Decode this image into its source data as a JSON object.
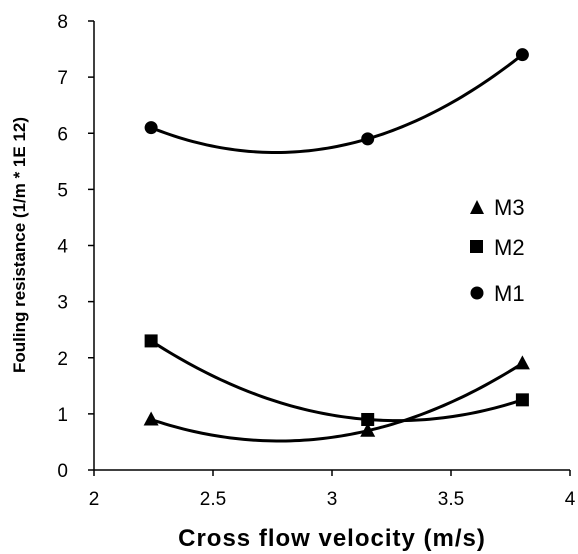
{
  "chart_data": {
    "type": "scatter",
    "xlabel": "Cross flow velocity (m/s)",
    "ylabel": "Fouling resistance (1/m * 1E 12)",
    "xlim": [
      2,
      4
    ],
    "ylim": [
      0,
      8
    ],
    "x_ticks": [
      "2",
      "2.5",
      "3",
      "3.5",
      "4"
    ],
    "y_ticks": [
      "0",
      "1",
      "2",
      "3",
      "4",
      "5",
      "6",
      "7",
      "8"
    ],
    "grid": false,
    "legend_position": "right",
    "trendline": "polynomial-2",
    "series": [
      {
        "name": "M3",
        "marker": "triangle",
        "color": "#000000",
        "points": [
          {
            "x": 2.24,
            "y": 0.9
          },
          {
            "x": 3.15,
            "y": 0.7
          },
          {
            "x": 3.8,
            "y": 1.9
          }
        ]
      },
      {
        "name": "M2",
        "marker": "square",
        "color": "#000000",
        "points": [
          {
            "x": 2.24,
            "y": 2.3
          },
          {
            "x": 3.15,
            "y": 0.9
          },
          {
            "x": 3.8,
            "y": 1.25
          }
        ]
      },
      {
        "name": "M1",
        "marker": "circle",
        "color": "#000000",
        "points": [
          {
            "x": 2.24,
            "y": 6.1
          },
          {
            "x": 3.15,
            "y": 5.9
          },
          {
            "x": 3.8,
            "y": 7.4
          }
        ]
      }
    ]
  }
}
